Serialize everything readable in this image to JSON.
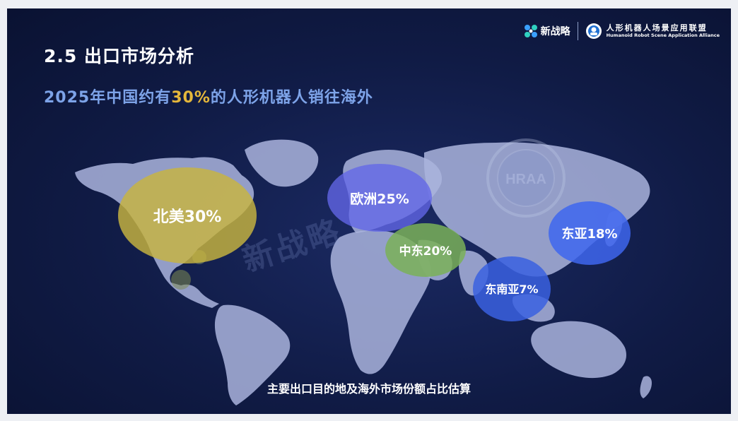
{
  "header": {
    "title": "2.5 出口市场分析",
    "subtitle_pre": "2025年中国约有",
    "subtitle_highlight": "30%",
    "subtitle_post": "的人形机器人销往海外"
  },
  "logos": {
    "brand_a": "新战略",
    "brand_b_cn": "人形机器人场景应用联盟",
    "brand_b_en": "Humanoid Robot Scene Application Alliance"
  },
  "watermark": {
    "text": "新战略",
    "seal": "HRAA"
  },
  "regions": [
    {
      "id": "north-america",
      "label": "北美30%",
      "share": 30,
      "color": "#c8b53f"
    },
    {
      "id": "europe",
      "label": "欧洲25%",
      "share": 25,
      "color": "#6366e8"
    },
    {
      "id": "middle-east",
      "label": "中东20%",
      "share": 20,
      "color": "#7ab058"
    },
    {
      "id": "east-asia",
      "label": "东亚18%",
      "share": 18,
      "color": "#3e66ee"
    },
    {
      "id": "southeast-asia",
      "label": "东南亚7%",
      "share": 7,
      "color": "#3a60e0"
    }
  ],
  "caption": "主要出口目的地及海外市场份额占比估算",
  "colors": {
    "background": "#101b45",
    "land": "#aab4dd",
    "title": "#ffffff",
    "subtitle": "#7da3e8",
    "highlight": "#e5b73b"
  }
}
